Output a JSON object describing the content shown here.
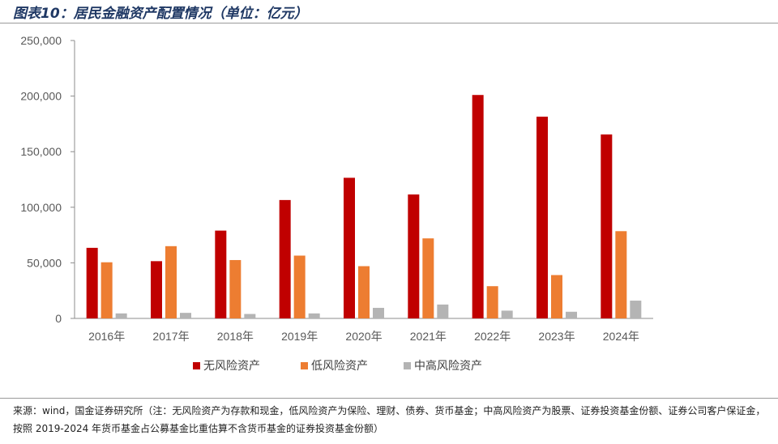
{
  "title": "图表10：居民金融资产配置情况（单位：亿元）",
  "source": "来源：wind，国金证券研究所（注：无风险资产为存款和现金，低风险资产为保险、理财、债券、货币基金；中高风险资产为股票、证券投资基金份额、证券公司客户保证金，按照 2019-2024 年货币基金占公募基金比重估算不含货币基金的证券投资基金份额）",
  "chart_data": {
    "type": "bar",
    "title": "居民金融资产配置情况（单位：亿元）",
    "xlabel": "",
    "ylabel": "",
    "ylim": [
      0,
      250000
    ],
    "yticks": [
      0,
      50000,
      100000,
      150000,
      200000,
      250000
    ],
    "ytick_labels": [
      "0",
      "50,000",
      "100,000",
      "150,000",
      "200,000",
      "250,000"
    ],
    "categories": [
      "2016年",
      "2017年",
      "2018年",
      "2019年",
      "2020年",
      "2021年",
      "2022年",
      "2023年",
      "2024年"
    ],
    "series": [
      {
        "name": "无风险资产",
        "color": "#c00000",
        "values": [
          63500,
          51500,
          79000,
          106500,
          126500,
          111500,
          201000,
          181500,
          165500
        ]
      },
      {
        "name": "低风险资产",
        "color": "#ed7d31",
        "values": [
          50500,
          65000,
          52500,
          56500,
          47000,
          72000,
          29000,
          39000,
          78500
        ]
      },
      {
        "name": "中高风险资产",
        "color": "#b4b4b4",
        "values": [
          4500,
          5000,
          4000,
          4500,
          9500,
          12500,
          7000,
          6000,
          16000
        ]
      }
    ],
    "legend": "bottom",
    "grid": false
  }
}
